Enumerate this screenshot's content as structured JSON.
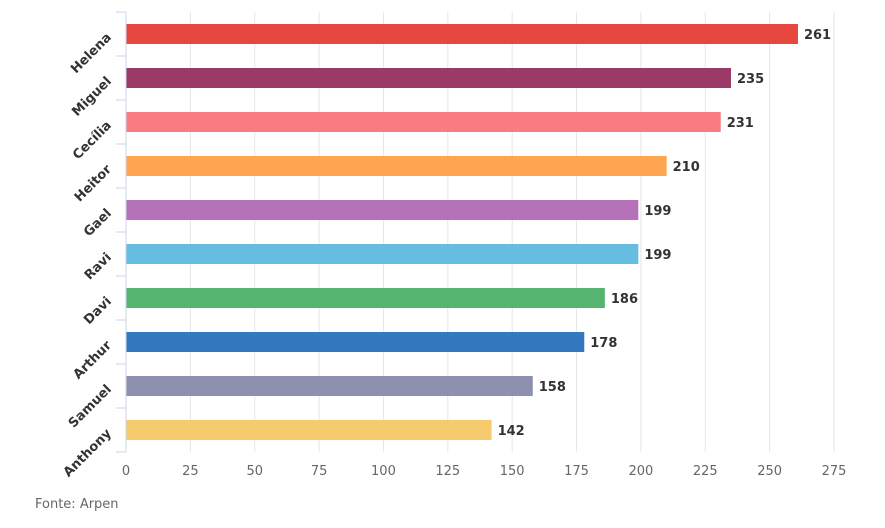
{
  "chart_data": {
    "type": "bar",
    "orientation": "horizontal",
    "categories": [
      "Helena",
      "Miguel",
      "Cecília",
      "Heitor",
      "Gael",
      "Ravi",
      "Davi",
      "Arthur",
      "Samuel",
      "Anthony"
    ],
    "values": [
      261,
      235,
      231,
      210,
      199,
      199,
      186,
      178,
      158,
      142
    ],
    "colors": [
      "#e8473f",
      "#9b3a67",
      "#fa7b81",
      "#ffa552",
      "#b672b9",
      "#65bde0",
      "#56b471",
      "#3479c0",
      "#8e91ad",
      "#f6cb6e"
    ],
    "xlim": [
      0,
      275
    ],
    "xticks": [
      "0",
      "25",
      "50",
      "75",
      "100",
      "125",
      "150",
      "175",
      "200",
      "225",
      "250",
      "275"
    ],
    "grid": true,
    "title": "",
    "xlabel": "",
    "ylabel": ""
  },
  "source": "Fonte: Arpen"
}
